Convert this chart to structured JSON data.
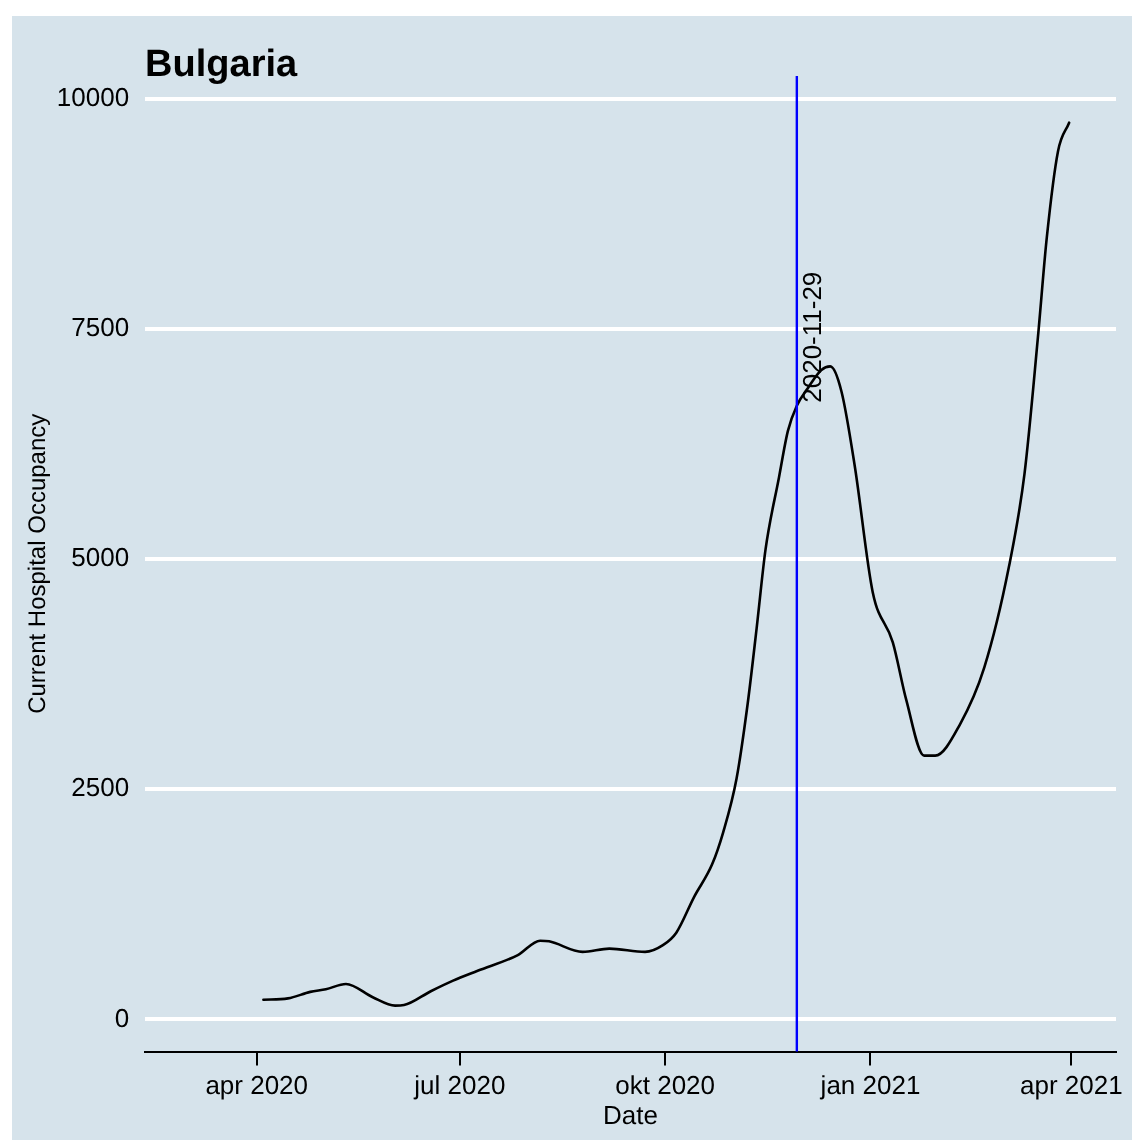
{
  "chart_data": {
    "type": "line",
    "title": "Bulgaria",
    "xlabel": "Date",
    "ylabel": "Current Hospital Occupancy",
    "x": [
      "2020-04-04",
      "2020-04-15",
      "2020-04-25",
      "2020-05-02",
      "2020-05-11",
      "2020-05-23",
      "2020-06-02",
      "2020-06-06",
      "2020-06-18",
      "2020-06-28",
      "2020-07-09",
      "2020-07-27",
      "2020-08-06",
      "2020-08-10",
      "2020-08-25",
      "2020-09-06",
      "2020-09-22",
      "2020-09-30",
      "2020-10-06",
      "2020-10-14",
      "2020-10-22",
      "2020-10-27",
      "2020-11-02",
      "2020-11-07",
      "2020-11-11",
      "2020-11-15",
      "2020-11-21",
      "2020-11-25",
      "2020-11-29",
      "2020-12-04",
      "2020-12-10",
      "2020-12-14",
      "2020-12-19",
      "2020-12-25",
      "2021-01-02",
      "2021-01-11",
      "2021-01-17",
      "2021-01-25",
      "2021-01-30",
      "2021-02-10",
      "2021-02-21",
      "2021-03-04",
      "2021-03-11",
      "2021-03-17",
      "2021-03-21",
      "2021-03-26",
      "2021-03-31"
    ],
    "series": [
      {
        "color": "#000000",
        "values": [
          214,
          228,
          299,
          327,
          385,
          241,
          150,
          156,
          306,
          421,
          528,
          699,
          855,
          848,
          733,
          769,
          733,
          806,
          942,
          1332,
          1682,
          2033,
          2617,
          3435,
          4252,
          5109,
          5888,
          6394,
          6667,
          6861,
          7056,
          7095,
          6822,
          6005,
          4642,
          4097,
          3474,
          2866,
          2866,
          3201,
          3824,
          4914,
          5927,
          7407,
          8497,
          9431,
          9743
        ]
      }
    ],
    "xlim": [
      "2020-02-11",
      "2021-04-21"
    ],
    "xticks": [
      {
        "value": "2020-04-01",
        "label": "apr 2020"
      },
      {
        "value": "2020-07-01",
        "label": "jul 2020"
      },
      {
        "value": "2020-10-01",
        "label": "okt 2020"
      },
      {
        "value": "2021-01-01",
        "label": "jan 2021"
      },
      {
        "value": "2021-04-01",
        "label": "apr 2021"
      }
    ],
    "ylim": [
      -350,
      10250
    ],
    "yticks": [
      0,
      2500,
      5000,
      7500,
      10000
    ],
    "grid": "y",
    "legend": false,
    "marker": "none",
    "line_style": "solid",
    "ref_lines": [
      {
        "axis": "x",
        "value": "2020-11-29",
        "label": "2020-11-29",
        "color": "#0000ff"
      }
    ]
  }
}
